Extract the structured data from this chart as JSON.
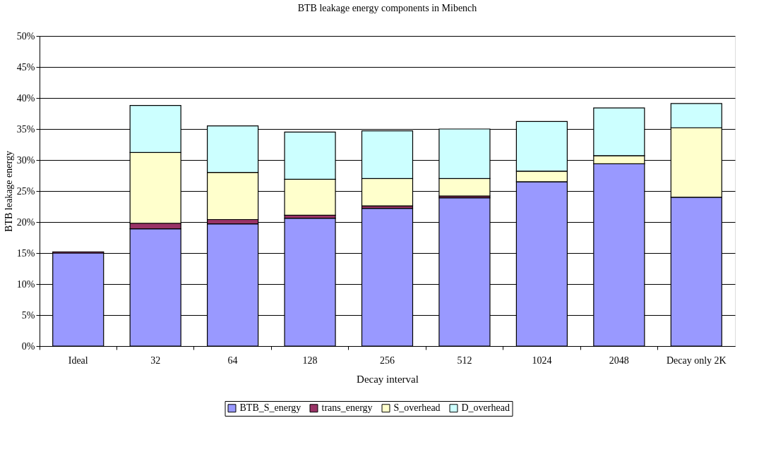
{
  "chart_data": {
    "type": "bar",
    "title": "BTB leakage energy components in Mibench",
    "xlabel": "Decay interval",
    "ylabel": "BTB leakage energy",
    "categories": [
      "Ideal",
      "32",
      "64",
      "128",
      "256",
      "512",
      "1024",
      "2048",
      "Decay only 2K"
    ],
    "stacked": true,
    "series": [
      {
        "name": "BTB_S_energy",
        "color": "#9999ff",
        "values": [
          15.0,
          18.9,
          19.7,
          20.6,
          22.2,
          23.9,
          26.5,
          29.4,
          24.0
        ]
      },
      {
        "name": "trans_energy",
        "color": "#993366",
        "values": [
          0.2,
          0.9,
          0.7,
          0.5,
          0.4,
          0.3,
          null,
          null,
          null
        ]
      },
      {
        "name": "S_overhead",
        "color": "#ffffcc",
        "values": [
          null,
          11.4,
          7.6,
          5.8,
          4.4,
          2.8,
          1.7,
          1.3,
          11.2
        ]
      },
      {
        "name": "D_overhead",
        "color": "#ccffff",
        "values": [
          null,
          7.6,
          7.5,
          7.6,
          7.7,
          8.0,
          8.0,
          7.7,
          3.9
        ]
      }
    ],
    "ylim": [
      0,
      50
    ],
    "yticks": [
      {
        "value": 0,
        "label": "0%"
      },
      {
        "value": 5,
        "label": "5%"
      },
      {
        "value": 10,
        "label": "10%"
      },
      {
        "value": 15,
        "label": "15%"
      },
      {
        "value": 20,
        "label": "20%"
      },
      {
        "value": 25,
        "label": "25%"
      },
      {
        "value": 30,
        "label": "30%"
      },
      {
        "value": 35,
        "label": "35%"
      },
      {
        "value": 40,
        "label": "40%"
      },
      {
        "value": 45,
        "label": "45%"
      },
      {
        "value": 50,
        "label": "50%"
      }
    ],
    "grid": "y",
    "legend": "bottom"
  }
}
